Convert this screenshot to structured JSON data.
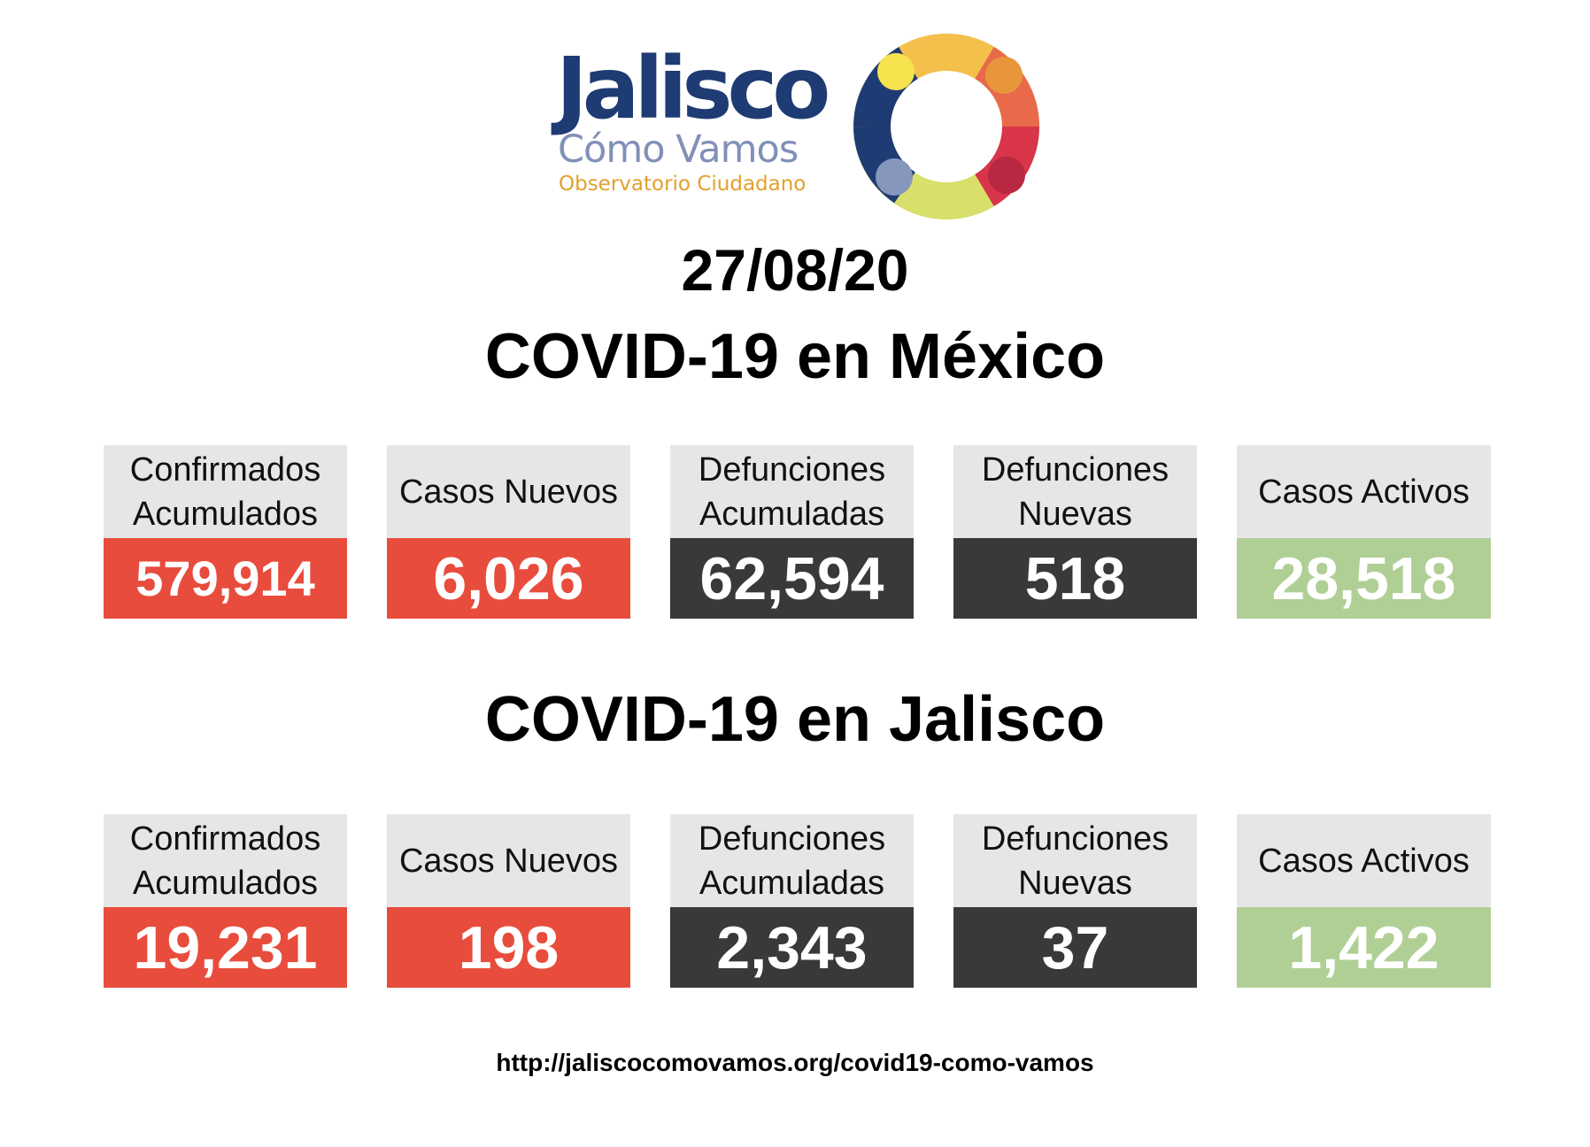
{
  "logo": {
    "title": "Jalisco",
    "subtitle": "Cómo Vamos",
    "tagline": "Observatorio Ciudadano"
  },
  "date": "27/08/20",
  "sections": [
    {
      "title": "COVID-19 en México",
      "cards": [
        {
          "label": "Confirmados\nAcumulados",
          "value": "579,914",
          "color": "#e84c3d"
        },
        {
          "label": "Casos Nuevos",
          "value": "6,026",
          "color": "#e84c3d"
        },
        {
          "label": "Defunciones\nAcumuladas",
          "value": "62,594",
          "color": "#393939"
        },
        {
          "label": "Defunciones\nNuevas",
          "value": "518",
          "color": "#393939"
        },
        {
          "label": "Casos Activos",
          "value": "28,518",
          "color": "#b0cf95"
        }
      ]
    },
    {
      "title": "COVID-19 en Jalisco",
      "cards": [
        {
          "label": "Confirmados\nAcumulados",
          "value": "19,231",
          "color": "#e84c3d"
        },
        {
          "label": "Casos Nuevos",
          "value": "198",
          "color": "#e84c3d"
        },
        {
          "label": "Defunciones\nAcumuladas",
          "value": "2,343",
          "color": "#393939"
        },
        {
          "label": "Defunciones\nNuevas",
          "value": "37",
          "color": "#393939"
        },
        {
          "label": "Casos Activos",
          "value": "1,422",
          "color": "#b0cf95"
        }
      ]
    }
  ],
  "url": "http://jaliscocomovamos.org/covid19-como-vamos"
}
